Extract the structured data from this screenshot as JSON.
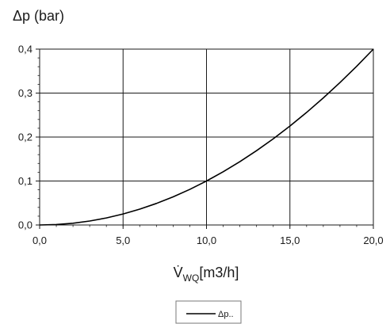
{
  "chart_data": {
    "type": "line",
    "ylabel": "Δp (bar)",
    "xlabel": "V̇",
    "xlabel_subscript": "WQ",
    "xlabel_unit": "[m3/h]",
    "xlim": [
      0,
      20
    ],
    "ylim": [
      0,
      0.4
    ],
    "x_ticks": [
      "0,0",
      "5,0",
      "10,0",
      "15,0",
      "20,0"
    ],
    "y_ticks": [
      "0,0",
      "0,1",
      "0,2",
      "0,3",
      "0,4"
    ],
    "grid": true,
    "legend_placement": "bottom-center",
    "series": [
      {
        "name": "Δp..",
        "color": "#000000",
        "x": [
          0,
          1,
          2,
          3,
          4,
          5,
          6,
          7,
          8,
          9,
          10,
          11,
          12,
          13,
          14,
          15,
          16,
          17,
          18,
          19,
          20
        ],
        "y": [
          0,
          0.001,
          0.004,
          0.009,
          0.016,
          0.025,
          0.036,
          0.049,
          0.064,
          0.081,
          0.1,
          0.121,
          0.144,
          0.169,
          0.196,
          0.225,
          0.256,
          0.289,
          0.324,
          0.361,
          0.4
        ]
      }
    ]
  }
}
